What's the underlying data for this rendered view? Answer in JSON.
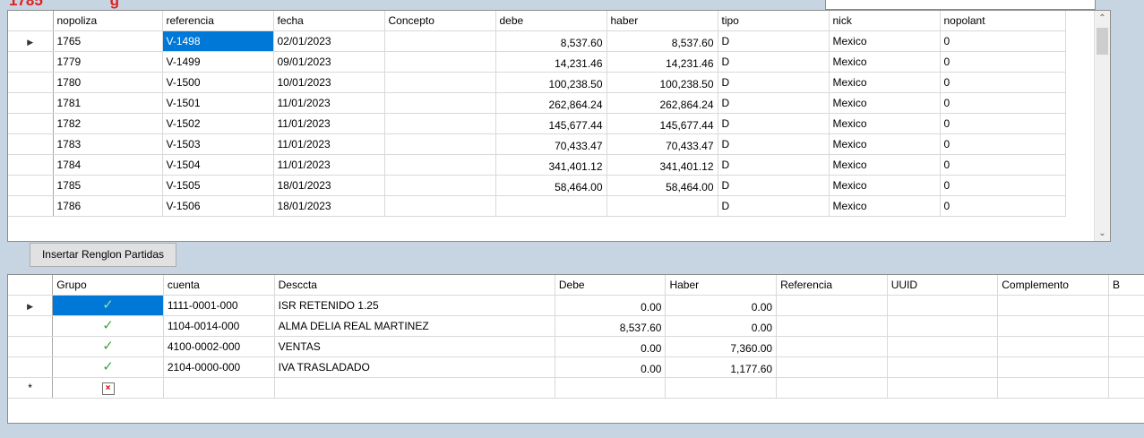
{
  "header": {
    "partial_number": "1785",
    "partial_suffix": "g"
  },
  "polizas_grid": {
    "columns": [
      "nopoliza",
      "referencia",
      "fecha",
      "Concepto",
      "debe",
      "haber",
      "tipo",
      "nick",
      "nopolant"
    ],
    "rows": [
      {
        "nopoliza": "1765",
        "referencia": "V-1498",
        "fecha": "02/01/2023",
        "concepto": "",
        "debe": "8,537.60",
        "haber": "8,537.60",
        "tipo": "D",
        "nick": "Mexico",
        "nopolant": "0"
      },
      {
        "nopoliza": "1779",
        "referencia": "V-1499",
        "fecha": "09/01/2023",
        "concepto": "",
        "debe": "14,231.46",
        "haber": "14,231.46",
        "tipo": "D",
        "nick": "Mexico",
        "nopolant": "0"
      },
      {
        "nopoliza": "1780",
        "referencia": "V-1500",
        "fecha": "10/01/2023",
        "concepto": "",
        "debe": "100,238.50",
        "haber": "100,238.50",
        "tipo": "D",
        "nick": "Mexico",
        "nopolant": "0"
      },
      {
        "nopoliza": "1781",
        "referencia": "V-1501",
        "fecha": "11/01/2023",
        "concepto": "",
        "debe": "262,864.24",
        "haber": "262,864.24",
        "tipo": "D",
        "nick": "Mexico",
        "nopolant": "0"
      },
      {
        "nopoliza": "1782",
        "referencia": "V-1502",
        "fecha": "11/01/2023",
        "concepto": "",
        "debe": "145,677.44",
        "haber": "145,677.44",
        "tipo": "D",
        "nick": "Mexico",
        "nopolant": "0"
      },
      {
        "nopoliza": "1783",
        "referencia": "V-1503",
        "fecha": "11/01/2023",
        "concepto": "",
        "debe": "70,433.47",
        "haber": "70,433.47",
        "tipo": "D",
        "nick": "Mexico",
        "nopolant": "0"
      },
      {
        "nopoliza": "1784",
        "referencia": "V-1504",
        "fecha": "11/01/2023",
        "concepto": "",
        "debe": "341,401.12",
        "haber": "341,401.12",
        "tipo": "D",
        "nick": "Mexico",
        "nopolant": "0"
      },
      {
        "nopoliza": "1785",
        "referencia": "V-1505",
        "fecha": "18/01/2023",
        "concepto": "",
        "debe": "58,464.00",
        "haber": "58,464.00",
        "tipo": "D",
        "nick": "Mexico",
        "nopolant": "0"
      },
      {
        "nopoliza": "1786",
        "referencia": "V-1506",
        "fecha": "18/01/2023",
        "concepto": "",
        "debe": "",
        "haber": "",
        "tipo": "D",
        "nick": "Mexico",
        "nopolant": "0"
      }
    ],
    "current_row_index": 0,
    "selected_cell": "referencia"
  },
  "insert_button": {
    "label": "Insertar Renglon Partidas"
  },
  "partidas_grid": {
    "columns": [
      "Grupo",
      "cuenta",
      "Desccta",
      "Debe",
      "Haber",
      "Referencia",
      "UUID",
      "Complemento",
      "B"
    ],
    "rows": [
      {
        "grupo": "check",
        "cuenta": "1111-0001-000",
        "desccta": "ISR RETENIDO 1.25",
        "debe": "0.00",
        "haber": "0.00",
        "referencia": "",
        "uuid": "",
        "complemento": ""
      },
      {
        "grupo": "check",
        "cuenta": "1104-0014-000",
        "desccta": "ALMA DELIA REAL MARTINEZ",
        "debe": "8,537.60",
        "haber": "0.00",
        "referencia": "",
        "uuid": "",
        "complemento": ""
      },
      {
        "grupo": "check",
        "cuenta": "4100-0002-000",
        "desccta": "VENTAS",
        "debe": "0.00",
        "haber": "7,360.00",
        "referencia": "",
        "uuid": "",
        "complemento": ""
      },
      {
        "grupo": "check",
        "cuenta": "2104-0000-000",
        "desccta": "IVA TRASLADADO",
        "debe": "0.00",
        "haber": "1,177.60",
        "referencia": "",
        "uuid": "",
        "complemento": ""
      }
    ],
    "new_row_marker": "*"
  },
  "icons": {
    "current_row": "row-pointer-icon",
    "check": "checkmark-icon",
    "broken_image": "broken-image-icon",
    "scroll_up": "scroll-up-arrow-icon",
    "scroll_down": "scroll-down-arrow-icon"
  },
  "colors": {
    "selection": "#0078d7",
    "header_red": "#e02020",
    "check_green": "#3aa63a",
    "background": "#c7d5e2"
  }
}
